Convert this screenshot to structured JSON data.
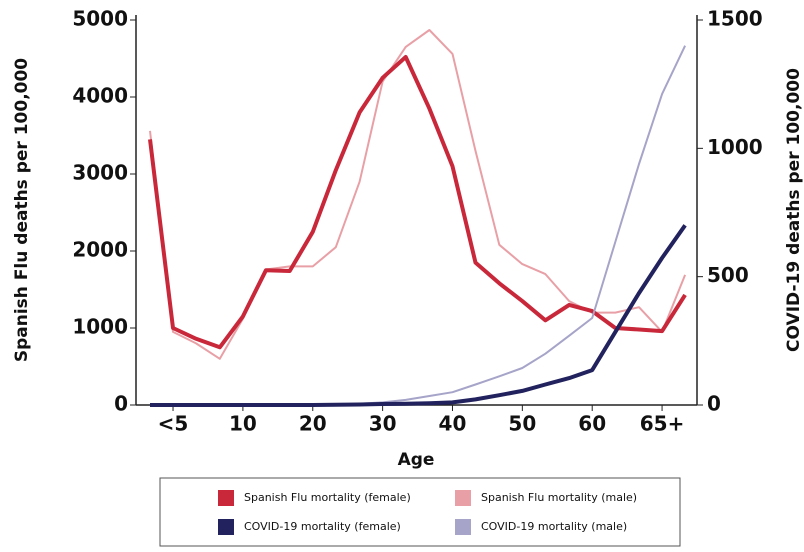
{
  "chart_data": {
    "type": "line",
    "x_label": "Age",
    "y_label": "Spanish Flu deaths per 100,000",
    "y2_label": "COVID-19 deaths per 100,000",
    "x": [
      -3.3,
      0,
      3.3,
      6.7,
      10,
      13.3,
      16.7,
      20,
      23.3,
      26.7,
      30,
      33.3,
      36.7,
      40,
      43.3,
      46.7,
      50,
      53.3,
      56.7,
      60,
      63.3,
      66.7,
      70,
      73.3
    ],
    "xlim": [
      -5.3,
      75
    ],
    "xticks": [
      {
        "value": 0,
        "label": "<5"
      },
      10,
      20,
      30,
      40,
      50,
      60,
      {
        "value": 70,
        "label": "65+"
      }
    ],
    "ylim": [
      0,
      5000
    ],
    "yticks": [
      0,
      1000,
      2000,
      3000,
      4000,
      5000
    ],
    "y2lim": [
      0,
      1500
    ],
    "y2ticks": [
      0,
      500,
      1000,
      1500
    ],
    "series": [
      {
        "name": "Spanish Flu mortality (male)",
        "color": "#e8a0a6",
        "width": 2,
        "values": [
          3560,
          950,
          800,
          600,
          1120,
          1760,
          1800,
          1800,
          2050,
          2900,
          4200,
          4650,
          4870,
          4560,
          3300,
          2080,
          1830,
          1700,
          1350,
          1200,
          1200,
          1270,
          950,
          1690
        ]
      },
      {
        "name": "Spanish Flu mortality (female)",
        "color": "#c8283a",
        "width": 4,
        "values": [
          3450,
          1000,
          860,
          750,
          1150,
          1750,
          1740,
          2250,
          3050,
          3800,
          4250,
          4520,
          3850,
          3100,
          1850,
          1580,
          1350,
          1100,
          1300,
          1220,
          1000,
          980,
          960,
          1430
        ]
      },
      {
        "name": "COVID-19 mortality (male)",
        "color": "#a6a4c8",
        "width": 2,
        "axis": "y2",
        "values": [
          0,
          0,
          0,
          0,
          0,
          0,
          0,
          0,
          2,
          5,
          10,
          20,
          35,
          50,
          80,
          112,
          144,
          200,
          270,
          339,
          635,
          939,
          1212,
          1400
        ]
      },
      {
        "name": "COVID-19 mortality (female)",
        "color": "#22225e",
        "width": 4,
        "axis": "y2",
        "values": [
          0,
          0,
          0,
          0,
          0,
          0,
          0,
          0,
          1,
          2,
          4,
          5,
          7,
          10,
          22,
          38,
          55,
          80,
          105,
          136,
          284,
          436,
          573,
          700
        ]
      }
    ]
  }
}
